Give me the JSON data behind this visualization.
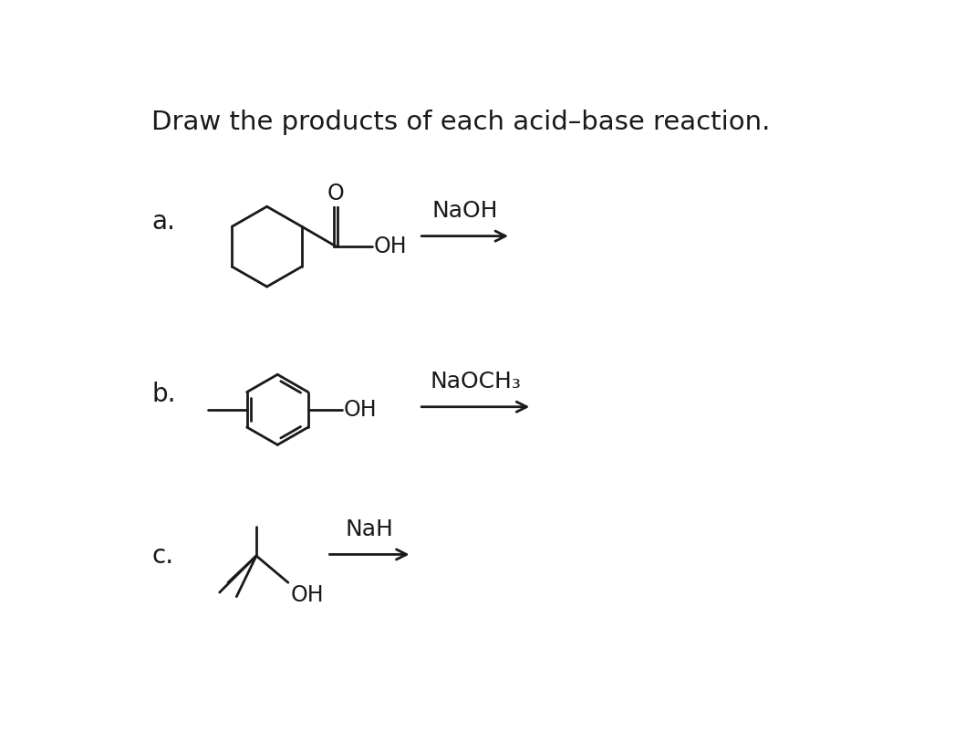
{
  "title": "Draw the products of each acid–base reaction.",
  "title_fontsize": 21,
  "background_color": "#ffffff",
  "text_color": "#1a1a1a",
  "label_a": "a.",
  "label_b": "b.",
  "label_c": "c.",
  "reagent_a": "NaOH",
  "reagent_b": "NaOCH₃",
  "reagent_c": "NaH",
  "label_fontsize": 20,
  "reagent_fontsize": 18,
  "oh_fontsize": 17,
  "o_fontsize": 17,
  "line_color": "#1a1a1a",
  "line_width": 2.0,
  "fig_width": 10.7,
  "fig_height": 8.14
}
